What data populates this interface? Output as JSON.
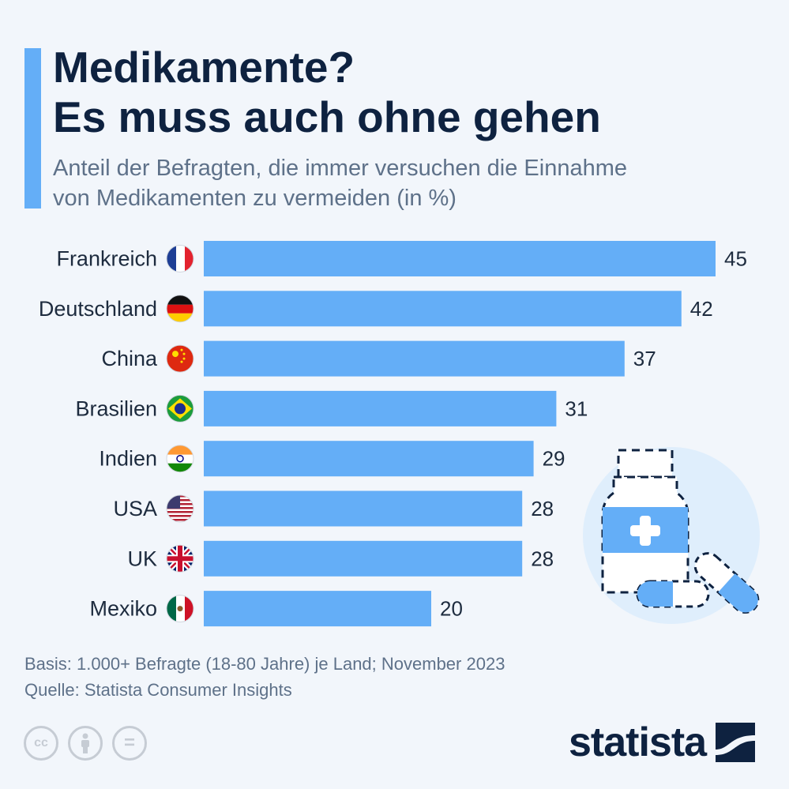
{
  "header": {
    "title_line1": "Medikamente?",
    "title_line2": "Es muss auch ohne gehen",
    "subtitle_line1": "Anteil der Befragten, die immer versuchen die Einnahme",
    "subtitle_line2": "von Medikamenten zu vermeiden (in %)"
  },
  "chart_data": {
    "type": "bar",
    "orientation": "horizontal",
    "categories": [
      "Frankreich",
      "Deutschland",
      "China",
      "Brasilien",
      "Indien",
      "USA",
      "UK",
      "Mexiko"
    ],
    "values": [
      45,
      42,
      37,
      31,
      29,
      28,
      28,
      20
    ],
    "title": "Medikamente? Es muss auch ohne gehen",
    "subtitle": "Anteil der Befragten, die immer versuchen die Einnahme von Medikamenten zu vermeiden (in %)",
    "xlim": [
      0,
      45
    ],
    "grid": false,
    "bar_color": "#64aef7",
    "flag_icons": [
      "flag-france-icon",
      "flag-germany-icon",
      "flag-china-icon",
      "flag-brazil-icon",
      "flag-india-icon",
      "flag-usa-icon",
      "flag-uk-icon",
      "flag-mexico-icon"
    ]
  },
  "footer": {
    "basis": "Basis: 1.000+ Befragte (18-80 Jahre) je Land; November 2023",
    "source": "Quelle: Statista Consumer Insights"
  },
  "license_icons": {
    "cc": "cc",
    "by_icon": "person-icon",
    "nd": "="
  },
  "brand": {
    "name": "statista",
    "color": "#0e2240"
  }
}
